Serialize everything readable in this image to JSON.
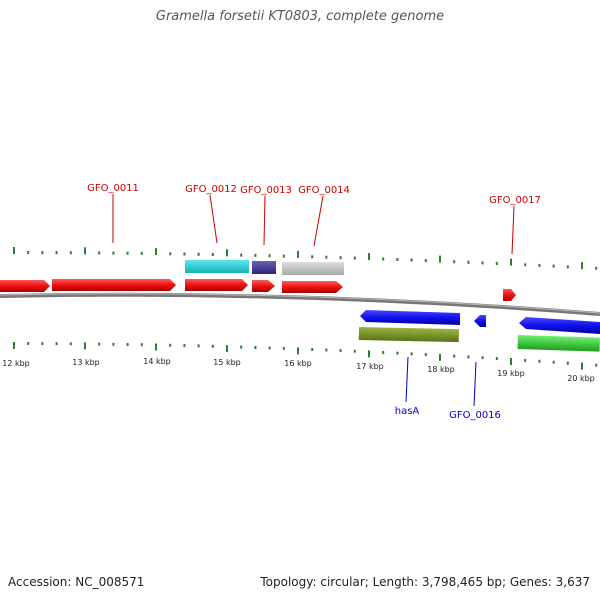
{
  "title": "Gramella forsetii KT0803, complete genome",
  "footer": {
    "accession": "Accession: NC_008571",
    "summary": "Topology: circular; Length: 3,798,465 bp; Genes: 3,637"
  },
  "colors": {
    "forward_label": "#cc0000",
    "reverse_label": "#0000cc",
    "tick": "#2e7d32",
    "backbone": "#888888"
  },
  "scale": {
    "unit": "kbp",
    "labels": [
      "12 kbp",
      "13 kbp",
      "14 kbp",
      "15 kbp",
      "16 kbp",
      "17 kbp",
      "18 kbp",
      "19 kbp",
      "20 kbp"
    ]
  },
  "gene_labels": {
    "forward": [
      "GFO_0011",
      "GFO_0012",
      "GFO_0013",
      "GFO_0014",
      "GFO_0017"
    ],
    "reverse": [
      "hasA",
      "GFO_0016"
    ]
  }
}
